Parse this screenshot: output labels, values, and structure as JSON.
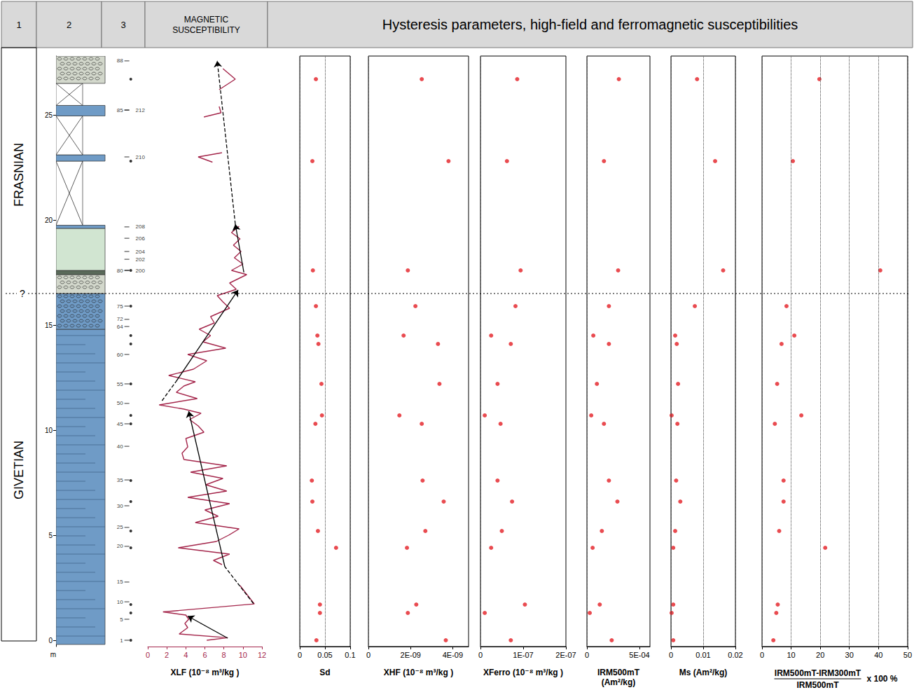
{
  "header": {
    "columns": [
      "1",
      "2",
      "3"
    ],
    "susceptibility": "MAGNETIC SUSCEPTIBILITY",
    "hysteresis": "Hysteresis parameters, high-field and ferromagnetic susceptibilities"
  },
  "stratigraphy": {
    "depth_axis": {
      "ylim": [
        -0.3,
        27.8
      ],
      "yticks": [
        0,
        5,
        10,
        15,
        20,
        25
      ],
      "unit": "m"
    },
    "stages": [
      {
        "name": "FRASNIAN",
        "from": 16.5,
        "to": 27.8
      },
      {
        "name": "GIVETIAN",
        "from": -0.3,
        "to": 16.5
      }
    ],
    "boundary": {
      "depth": 16.5,
      "label": "?"
    },
    "beds": [
      {
        "from": -0.2,
        "to": 14.8,
        "color": "#6f9bc6",
        "kind": "fill"
      },
      {
        "from": 14.8,
        "to": 16.5,
        "color": "#6f9bc6",
        "kind": "pebbles"
      },
      {
        "from": 16.5,
        "to": 17.4,
        "color": "#d3d8cc",
        "kind": "pebbles"
      },
      {
        "from": 17.4,
        "to": 17.6,
        "color": "#5a6a5a",
        "kind": "fill"
      },
      {
        "from": 17.6,
        "to": 19.6,
        "color": "#d1e5d1",
        "kind": "fill"
      },
      {
        "from": 19.6,
        "to": 19.75,
        "color": "#6f9bc6",
        "kind": "fill"
      },
      {
        "from": 19.75,
        "to": 22.8,
        "color": "#ffffff",
        "kind": "cross"
      },
      {
        "from": 22.8,
        "to": 23.1,
        "color": "#6f9bc6",
        "kind": "fill"
      },
      {
        "from": 23.1,
        "to": 24.95,
        "color": "#ffffff",
        "kind": "cross"
      },
      {
        "from": 24.95,
        "to": 25.45,
        "color": "#6f9bc6",
        "kind": "fill"
      },
      {
        "from": 25.45,
        "to": 26.5,
        "color": "#ffffff",
        "kind": "cross"
      },
      {
        "from": 26.5,
        "to": 27.8,
        "color": "#d3d8cc",
        "kind": "pebbles"
      }
    ],
    "sample_numbers": [
      {
        "depth": 0.0,
        "label": "1"
      },
      {
        "depth": 1.0,
        "label": "5"
      },
      {
        "depth": 1.83,
        "label": "10"
      },
      {
        "depth": 2.77,
        "label": "15"
      },
      {
        "depth": 4.47,
        "label": "20"
      },
      {
        "depth": 5.37,
        "label": "25"
      },
      {
        "depth": 6.4,
        "label": "30"
      },
      {
        "depth": 7.63,
        "label": "35"
      },
      {
        "depth": 9.23,
        "label": "40"
      },
      {
        "depth": 10.3,
        "label": "45"
      },
      {
        "depth": 11.27,
        "label": "50"
      },
      {
        "depth": 12.2,
        "label": "55"
      },
      {
        "depth": 13.6,
        "label": "60"
      },
      {
        "depth": 14.93,
        "label": "64"
      },
      {
        "depth": 15.27,
        "label": "72"
      },
      {
        "depth": 15.9,
        "label": "75"
      },
      {
        "depth": 17.6,
        "label": "80"
      },
      {
        "depth": 25.23,
        "label": "85"
      },
      {
        "depth": 27.57,
        "label": "88"
      }
    ],
    "sample_numbers_2": [
      {
        "depth": 17.6,
        "label": "200"
      },
      {
        "depth": 18.13,
        "label": "202"
      },
      {
        "depth": 18.5,
        "label": "204"
      },
      {
        "depth": 19.13,
        "label": "206"
      },
      {
        "depth": 19.67,
        "label": "208"
      },
      {
        "depth": 23.0,
        "label": "210"
      },
      {
        "depth": 25.23,
        "label": "212"
      }
    ],
    "sample_dots": [
      26.7,
      22.8,
      17.6,
      15.9,
      14.5,
      14.1,
      12.2,
      10.7,
      10.3,
      7.6,
      6.6,
      5.2,
      4.4,
      1.7,
      1.3,
      0.0
    ]
  },
  "chart_data": [
    {
      "type": "line",
      "x_label": "XLF (10⁻⁸ m³/kg )",
      "color": "#a4264b",
      "line_style": "solid",
      "xlim": [
        0,
        12
      ],
      "xticks": [
        0,
        2,
        4,
        6,
        8,
        10,
        12
      ],
      "ylim": [
        -0.3,
        27.8
      ],
      "tick_labels": "x",
      "grid": false,
      "x": [
        6.2,
        8.4,
        3.3,
        4.2,
        3.9,
        4.3,
        4.0,
        1.6,
        11.2,
        9.7,
        null,
        7.8,
        6.9,
        8.6,
        3.2,
        7.2,
        8.5,
        9.6,
        5.0,
        7.4,
        6.0,
        8.6,
        4.2,
        8.3,
        6.1,
        7.9,
        4.5,
        8.3,
        3.8,
        3.6,
        4.2,
        4.0,
        5.9,
        5.3,
        4.4,
        5.6,
        3.8,
        1.2,
        5.2,
        3.0,
        3.8,
        5.0,
        2.2,
        4.8,
        6.2,
        4.2,
        8.2,
        5.8,
        6.6,
        5.4,
        7.0,
        6.6,
        8.6,
        7.9,
        7.3,
        9.3,
        8.6,
        10.4,
        8.8,
        10.0,
        9.1,
        9.8,
        9.0,
        9.7,
        8.8,
        9.6,
        null,
        6.8,
        5.3,
        7.8,
        null,
        5.9,
        7.7,
        7.5,
        null,
        7.5,
        9.2,
        7.9
      ],
      "y": [
        0.0,
        0.12,
        0.3,
        0.6,
        0.8,
        1.0,
        1.2,
        1.35,
        1.73,
        2.6,
        3.1,
        3.6,
        3.8,
        4.1,
        4.4,
        4.7,
        5.0,
        5.3,
        5.6,
        5.9,
        6.2,
        6.5,
        6.8,
        7.1,
        7.4,
        7.7,
        8.0,
        8.3,
        8.6,
        8.9,
        9.2,
        9.6,
        9.9,
        10.2,
        10.5,
        10.8,
        11.0,
        11.2,
        11.5,
        11.8,
        12.1,
        12.3,
        12.6,
        12.9,
        13.3,
        13.6,
        13.9,
        14.2,
        14.5,
        14.8,
        15.1,
        15.4,
        15.8,
        16.1,
        16.4,
        16.7,
        17.0,
        17.4,
        17.6,
        17.9,
        18.2,
        18.5,
        18.8,
        19.1,
        19.4,
        19.7,
        21.0,
        22.75,
        23.0,
        23.2,
        24.0,
        24.9,
        25.1,
        25.4,
        25.8,
        26.2,
        26.7,
        27.2
      ],
      "trends": [
        {
          "x": [
            8.4,
            4.2
          ],
          "y": [
            0.1,
            1.15
          ],
          "line_style": "solid",
          "marker": "arrow"
        },
        {
          "x": [
            11.1,
            8.1
          ],
          "y": [
            1.75,
            3.5
          ],
          "line_style": "dashed",
          "marker": "none"
        },
        {
          "x": [
            8.1,
            4.3
          ],
          "y": [
            3.5,
            10.9
          ],
          "line_style": "solid",
          "marker": "arrow"
        },
        {
          "x": [
            1.5,
            3.0
          ],
          "y": [
            11.4,
            12.33
          ],
          "line_style": "dashed",
          "marker": "none"
        },
        {
          "x": [
            3.0,
            9.5
          ],
          "y": [
            12.33,
            16.67
          ],
          "line_style": "solid",
          "marker": "arrow"
        },
        {
          "x": [
            10.1,
            9.2
          ],
          "y": [
            17.5,
            19.8
          ],
          "line_style": "solid",
          "marker": "arrow"
        },
        {
          "x": [
            9.2,
            7.3
          ],
          "y": [
            19.8,
            27.57
          ],
          "line_style": "dashed",
          "marker": "arrow"
        }
      ]
    },
    {
      "type": "scatter",
      "x_label": "Sd",
      "color": "#e31e24",
      "marker": "circle",
      "xlim": [
        0,
        0.1
      ],
      "xticks": [
        0,
        0.05,
        0.1
      ],
      "ylim": [
        -0.3,
        27.8
      ],
      "tick_labels": "x",
      "grid": true,
      "x": [
        0.032,
        0.025,
        0.026,
        0.032,
        0.035,
        0.037,
        0.043,
        0.044,
        0.031,
        0.024,
        0.025,
        0.036,
        0.072,
        0.04,
        0.04,
        0.033
      ],
      "y": [
        26.7,
        22.8,
        17.6,
        15.9,
        14.5,
        14.1,
        12.2,
        10.7,
        10.3,
        7.6,
        6.6,
        5.2,
        4.4,
        1.7,
        1.3,
        0.0
      ]
    },
    {
      "type": "scatter",
      "x_label": "XHF (10⁻⁸ m³/kg )",
      "color": "#e31e24",
      "marker": "circle",
      "xlim": [
        0,
        4.75e-09
      ],
      "xticks": [
        0,
        {
          "value": 2e-09,
          "label": "2E-09"
        },
        {
          "value": 4e-09,
          "label": "4E-09"
        }
      ],
      "ylim": [
        -0.3,
        27.8
      ],
      "tick_labels": "x",
      "grid": true,
      "x": [
        2.53e-09,
        3.8e-09,
        1.87e-09,
        2.23e-09,
        1.67e-09,
        3.3e-09,
        3.37e-09,
        1.47e-09,
        2.53e-09,
        2.57e-09,
        3.57e-09,
        2.7e-09,
        1.83e-09,
        2.27e-09,
        1.87e-09,
        3.67e-09
      ],
      "y": [
        26.7,
        22.8,
        17.6,
        15.9,
        14.5,
        14.1,
        12.2,
        10.7,
        10.3,
        7.6,
        6.6,
        5.2,
        4.4,
        1.7,
        1.3,
        0.0
      ]
    },
    {
      "type": "scatter",
      "x_label": "XFerro (10⁻⁸ m³/kg )",
      "color": "#e31e24",
      "marker": "circle",
      "xlim": [
        0,
        2e-07
      ],
      "xticks": [
        0,
        {
          "value": 1e-07,
          "label": "1E-07"
        },
        {
          "value": 2e-07,
          "label": "2E-07"
        }
      ],
      "ylim": [
        -0.3,
        27.8
      ],
      "tick_labels": "x",
      "grid": true,
      "x": [
        8.6e-08,
        6.2e-08,
        9.4e-08,
        8.2e-08,
        2.5e-08,
        7.1e-08,
        4e-08,
        1e-08,
        4.7e-08,
        4e-08,
        7.4e-08,
        5e-08,
        2.5e-08,
        1.04e-07,
        1e-08,
        7.1e-08
      ],
      "y": [
        26.7,
        22.8,
        17.6,
        15.9,
        14.5,
        14.1,
        12.2,
        10.7,
        10.3,
        7.6,
        6.6,
        5.2,
        4.4,
        1.7,
        1.3,
        0.0
      ]
    },
    {
      "type": "scatter",
      "x_label": "IRM500mT (Am²/kg)",
      "color": "#e31e24",
      "marker": "circle",
      "xlim": [
        0,
        0.0006
      ],
      "xticks": [
        0,
        {
          "value": 0.0005,
          "label": "5E-04"
        }
      ],
      "ylim": [
        -0.3,
        27.8
      ],
      "tick_labels": "x",
      "grid": true,
      "x": [
        0.000304,
        0.000162,
        0.000297,
        0.000209,
        6.1e-05,
        0.000209,
        9.5e-05,
        4.1e-05,
        0.000162,
        0.000209,
        0.00029,
        0.000142,
        5.4e-05,
        0.000122,
        2.7e-05,
        0.000236
      ],
      "y": [
        26.7,
        22.8,
        17.6,
        15.9,
        14.5,
        14.1,
        12.2,
        10.7,
        10.3,
        7.6,
        6.6,
        5.2,
        4.4,
        1.7,
        1.3,
        0.0
      ]
    },
    {
      "type": "scatter",
      "x_label": "Ms (Am²/kg)",
      "color": "#e31e24",
      "marker": "circle",
      "xlim": [
        0,
        0.02
      ],
      "xticks": [
        0,
        0.01,
        0.02
      ],
      "ylim": [
        -0.3,
        27.8
      ],
      "tick_labels": "x",
      "grid": true,
      "x": [
        0.0081,
        0.0137,
        0.0162,
        0.0074,
        0.0013,
        0.0018,
        0.0022,
        0.0002,
        0.002,
        0.0016,
        0.0029,
        0.0013,
        0.0007,
        0.0007,
        0.0002,
        0.0007
      ],
      "y": [
        26.7,
        22.8,
        17.6,
        15.9,
        14.5,
        14.1,
        12.2,
        10.7,
        10.3,
        7.6,
        6.6,
        5.2,
        4.4,
        1.7,
        1.3,
        0.0
      ]
    },
    {
      "type": "scatter",
      "x_label": {
        "numerator": "IRM500mT-IRM300mT",
        "denominator": "IRM500mT",
        "suffix": "x 100 %"
      },
      "color": "#e31e24",
      "marker": "circle",
      "xlim": [
        0,
        50
      ],
      "xticks": [
        0,
        10,
        20,
        30,
        40,
        50
      ],
      "ylim": [
        -0.3,
        27.8
      ],
      "tick_labels": "x",
      "grid": true,
      "x": [
        19.7,
        10.6,
        40.6,
        8.4,
        11.1,
        6.7,
        5.2,
        13.5,
        4.4,
        7.4,
        7.4,
        5.9,
        21.7,
        5.4,
        4.9,
        3.9
      ],
      "y": [
        26.7,
        22.8,
        17.6,
        15.9,
        14.5,
        14.1,
        12.2,
        10.7,
        10.3,
        7.6,
        6.6,
        5.2,
        4.4,
        1.7,
        1.3,
        0.0
      ]
    }
  ]
}
